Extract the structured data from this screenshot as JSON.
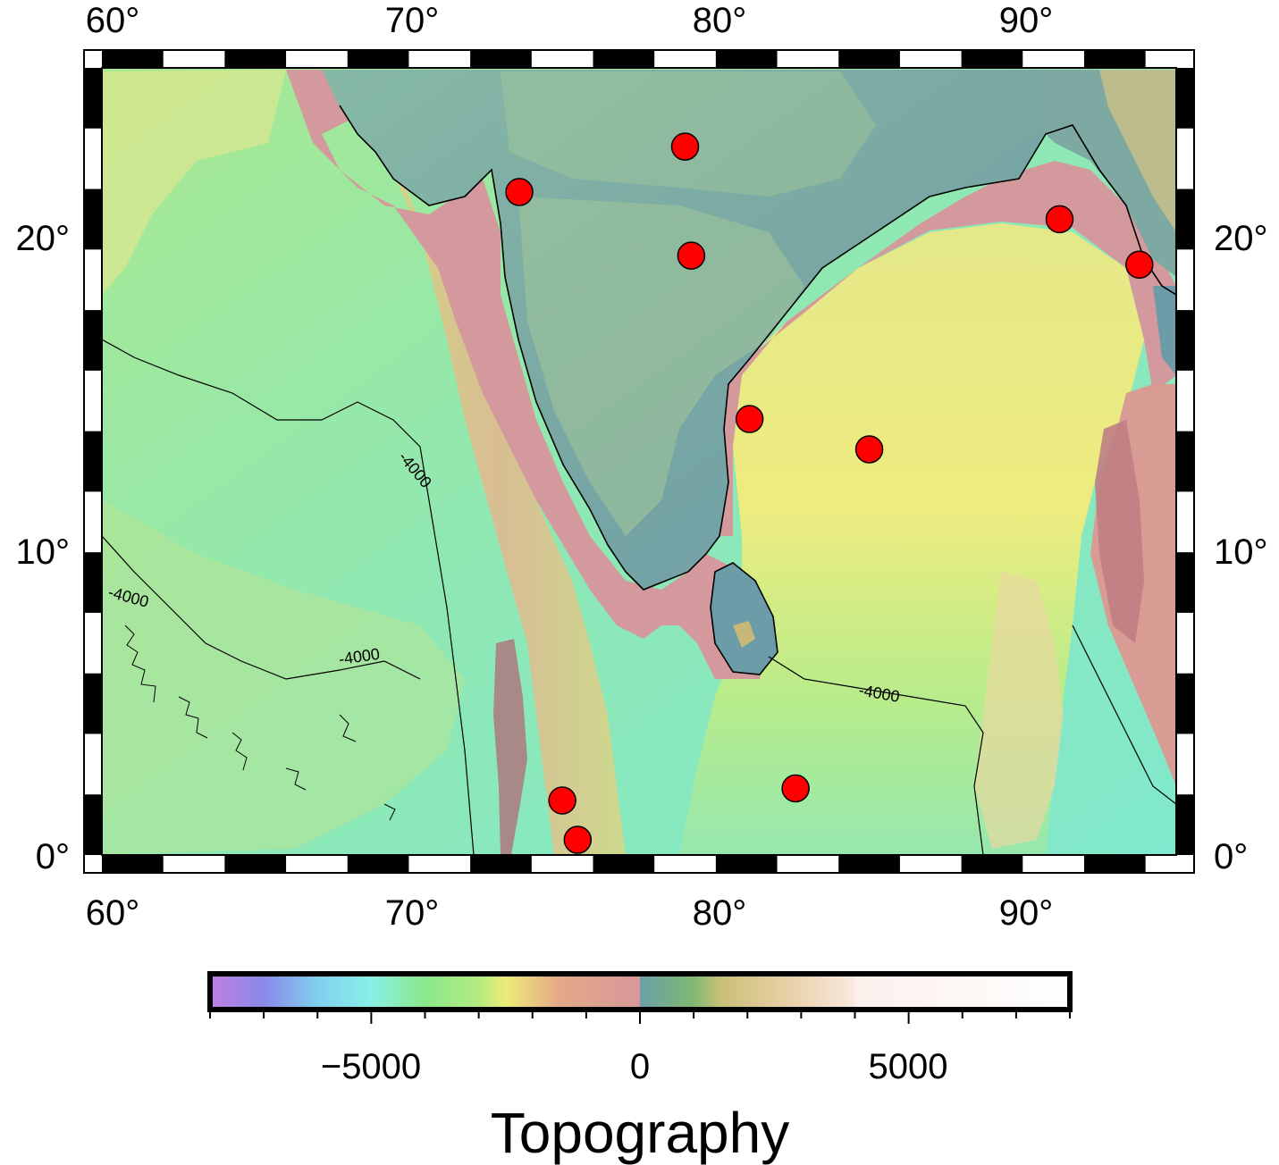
{
  "map": {
    "lon_range": [
      60,
      95
    ],
    "lat_range": [
      0,
      26
    ],
    "tick_interval_deg": 2,
    "annotations": {
      "top": [
        "60°",
        "70°",
        "80°",
        "90°"
      ],
      "bottom": [
        "60°",
        "70°",
        "80°",
        "90°"
      ],
      "left": [
        "0°",
        "10°",
        "20°"
      ],
      "right": [
        "0°",
        "10°",
        "20°"
      ]
    },
    "contour_labels": [
      "-4000",
      "-4000",
      "-4000",
      "-4000"
    ],
    "marker_color": "#ff0000",
    "stations": [
      {
        "lon": 73.6,
        "lat": 21.9
      },
      {
        "lon": 79.0,
        "lat": 23.4
      },
      {
        "lon": 79.2,
        "lat": 19.8
      },
      {
        "lon": 91.2,
        "lat": 21.0
      },
      {
        "lon": 93.8,
        "lat": 19.5
      },
      {
        "lon": 81.1,
        "lat": 14.4
      },
      {
        "lon": 85.0,
        "lat": 13.4
      },
      {
        "lon": 82.6,
        "lat": 2.2
      },
      {
        "lon": 75.0,
        "lat": 1.8
      },
      {
        "lon": 75.5,
        "lat": 0.5
      }
    ]
  },
  "colorbar": {
    "title": "Topography",
    "ticks": [
      {
        "value": -5000,
        "label": "−5000"
      },
      {
        "value": 0,
        "label": "0"
      },
      {
        "value": 5000,
        "label": "5000"
      }
    ],
    "range": [
      -8000,
      8000
    ],
    "minor_tick_interval": 1000,
    "stops": [
      {
        "value": -8000,
        "color": "#c080e0"
      },
      {
        "value": -7000,
        "color": "#8a88e8"
      },
      {
        "value": -6000,
        "color": "#80d0ee"
      },
      {
        "value": -5000,
        "color": "#88f0e8"
      },
      {
        "value": -4000,
        "color": "#8ae88a"
      },
      {
        "value": -3000,
        "color": "#b4ec80"
      },
      {
        "value": -2500,
        "color": "#ecec78"
      },
      {
        "value": -1500,
        "color": "#e4a888"
      },
      {
        "value": 0,
        "color": "#d8989a"
      },
      {
        "value": 0.1,
        "color": "#6aa0a8"
      },
      {
        "value": 1000,
        "color": "#80b870"
      },
      {
        "value": 1500,
        "color": "#c8c078"
      },
      {
        "value": 2500,
        "color": "#e4cc9c"
      },
      {
        "value": 4000,
        "color": "#fae8e0"
      },
      {
        "value": 4000.1,
        "color": "#fcf0ec"
      },
      {
        "value": 8000,
        "color": "#ffffff"
      }
    ]
  }
}
